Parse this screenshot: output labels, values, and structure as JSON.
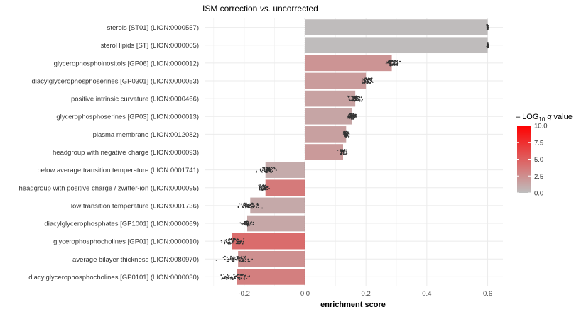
{
  "chart_data": {
    "type": "bar",
    "orientation": "horizontal",
    "title_parts": [
      {
        "text": "ISM correction ",
        "italic": false
      },
      {
        "text": "vs.",
        "italic": true
      },
      {
        "text": " uncorrected",
        "italic": false
      }
    ],
    "xlabel": "enrichment score",
    "ylabel": "",
    "xlim": [
      -0.33,
      0.65
    ],
    "xticks": [
      -0.2,
      0.0,
      0.2,
      0.4,
      0.6
    ],
    "xtick_labels": [
      "-0.2",
      "0.0",
      "0.2",
      "0.4",
      "0.6"
    ],
    "reference_line": 0,
    "categories": [
      "sterols [ST01] (LION:0000557)",
      "sterol lipids [ST] (LION:0000005)",
      "glycerophosphoinositols [GP06] (LION:0000012)",
      "diacylglycerophosphoserines [GP0301] (LION:0000053)",
      "positive intrinsic curvature (LION:0000466)",
      "glycerophosphoserines [GP03] (LION:0000013)",
      "plasma membrane (LION:0012082)",
      "headgroup with negative charge (LION:0000093)",
      "below average transition temperature (LION:0001741)",
      "headgroup with positive charge / zwitter-ion (LION:0000095)",
      "low transition temperature (LION:0001736)",
      "diacylglycerophosphates [GP1001] (LION:0000069)",
      "glycerophosphocholines [GP01] (LION:0000010)",
      "average bilayer thickness (LION:0080970)",
      "diacylglycerophosphocholines [GP0101] (LION:0000030)"
    ],
    "values": [
      0.6,
      0.6,
      0.285,
      0.2,
      0.165,
      0.155,
      0.135,
      0.125,
      -0.13,
      -0.13,
      -0.18,
      -0.19,
      -0.24,
      -0.22,
      -0.225
    ],
    "neg_log10_q": [
      0.1,
      0.1,
      2.2,
      1.8,
      1.5,
      1.3,
      1.6,
      1.9,
      1.0,
      3.6,
      1.1,
      1.2,
      4.3,
      2.4,
      3.3
    ],
    "jitter": [
      {
        "center": 0.6,
        "spread": 0.004,
        "n": 40
      },
      {
        "center": 0.6,
        "spread": 0.004,
        "n": 40
      },
      {
        "center": 0.29,
        "spread": 0.03,
        "n": 70
      },
      {
        "center": 0.205,
        "spread": 0.025,
        "n": 70
      },
      {
        "center": 0.165,
        "spread": 0.03,
        "n": 70
      },
      {
        "center": 0.155,
        "spread": 0.02,
        "n": 70
      },
      {
        "center": 0.135,
        "spread": 0.015,
        "n": 60
      },
      {
        "center": 0.125,
        "spread": 0.02,
        "n": 60
      },
      {
        "center": -0.125,
        "spread": 0.04,
        "n": 70
      },
      {
        "center": -0.135,
        "spread": 0.025,
        "n": 60
      },
      {
        "center": -0.185,
        "spread": 0.05,
        "n": 70
      },
      {
        "center": -0.19,
        "spread": 0.025,
        "n": 60
      },
      {
        "center": -0.235,
        "spread": 0.06,
        "n": 70
      },
      {
        "center": -0.225,
        "spread": 0.07,
        "n": 70
      },
      {
        "center": -0.225,
        "spread": 0.065,
        "n": 70
      }
    ],
    "legend": {
      "title_parts": [
        {
          "text": "– LOG",
          "sub": false,
          "italic": false
        },
        {
          "text": "10",
          "sub": true,
          "italic": false
        },
        {
          "text": " q",
          "sub": false,
          "italic": true
        },
        {
          "text": " value",
          "sub": false,
          "italic": false
        }
      ],
      "range": [
        0,
        10
      ],
      "ticks": [
        0.0,
        2.5,
        5.0,
        7.5,
        10.0
      ],
      "tick_labels": [
        "0.0",
        "2.5",
        "5.0",
        "7.5",
        "10.0"
      ],
      "placement": "right"
    },
    "colors": {
      "low": "#bebebe",
      "high": "#ff0000",
      "points": "#333333",
      "grid": "#ebebeb",
      "zero_line": "#555555"
    },
    "grid": true
  }
}
